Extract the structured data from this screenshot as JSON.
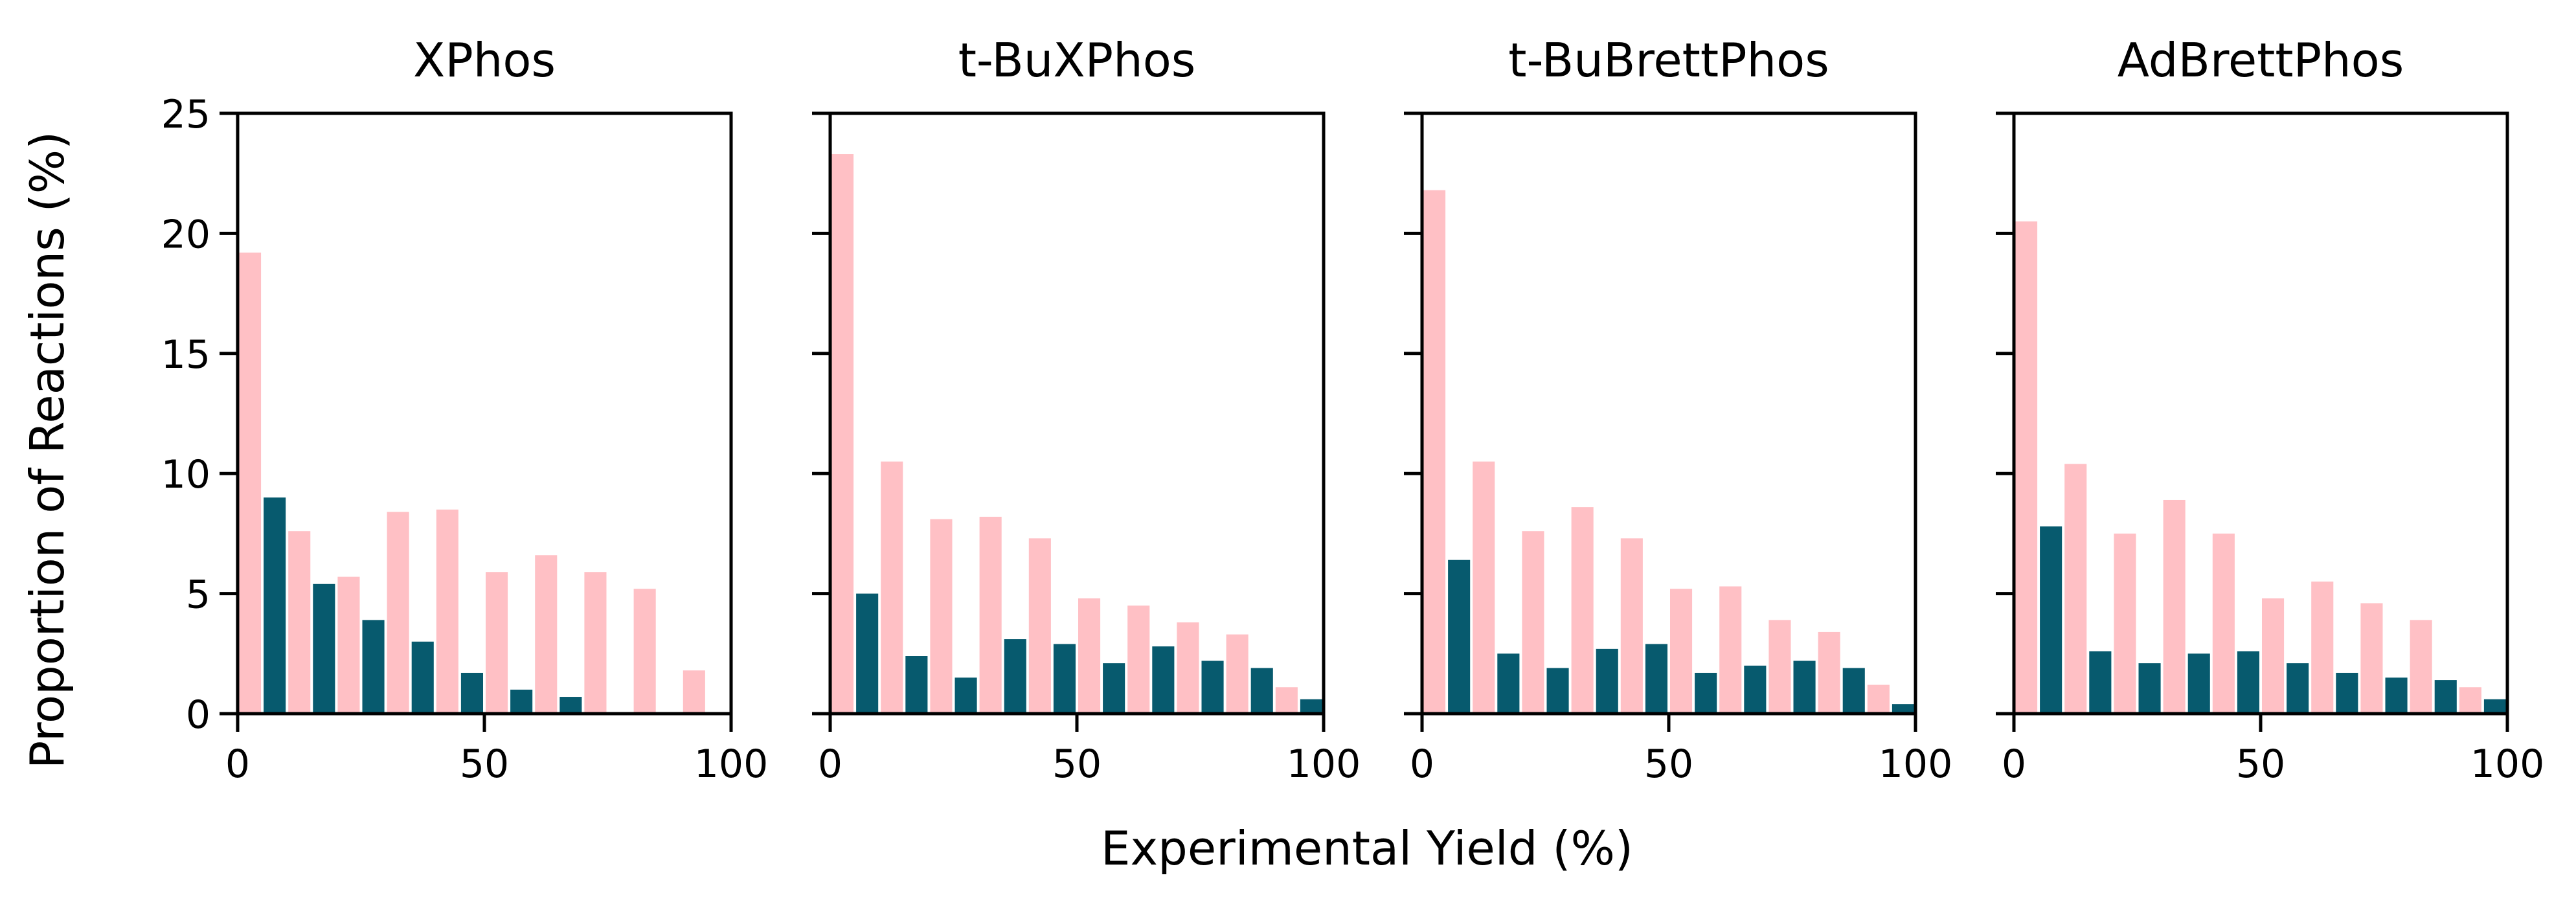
{
  "figure": {
    "ylabel": "Proportion of Reactions (%)",
    "xlabel": "Experimental Yield (%)"
  },
  "colors": {
    "series_a": "#ffc0c5",
    "series_b": "#075a6e",
    "axis": "#000000",
    "background": "#ffffff"
  },
  "chart_data": [
    {
      "type": "bar",
      "title": "XPhos",
      "x_ticks": [
        "0",
        "50",
        "100"
      ],
      "y_ticks": [
        "0",
        "5",
        "10",
        "15",
        "20",
        "25"
      ],
      "xlim": [
        0,
        100
      ],
      "ylim": [
        0,
        25
      ],
      "bin_centers": [
        5,
        15,
        25,
        35,
        45,
        55,
        65,
        75,
        85,
        95
      ],
      "series": [
        {
          "values": [
            19.2,
            7.6,
            5.7,
            8.4,
            8.5,
            5.9,
            6.6,
            5.9,
            5.2,
            1.8
          ]
        },
        {
          "values": [
            9.0,
            5.4,
            3.9,
            3.0,
            1.7,
            1.0,
            0.7,
            0,
            0,
            0
          ]
        }
      ]
    },
    {
      "type": "bar",
      "title": "t-BuXPhos",
      "x_ticks": [
        "0",
        "50",
        "100"
      ],
      "y_ticks": [],
      "xlim": [
        0,
        100
      ],
      "ylim": [
        0,
        25
      ],
      "bin_centers": [
        5,
        15,
        25,
        35,
        45,
        55,
        65,
        75,
        85,
        95
      ],
      "series": [
        {
          "values": [
            23.3,
            10.5,
            8.1,
            8.2,
            7.3,
            4.8,
            4.5,
            3.8,
            3.3,
            1.1
          ]
        },
        {
          "values": [
            5.0,
            2.4,
            1.5,
            3.1,
            2.9,
            2.1,
            2.8,
            2.2,
            1.9,
            0.6
          ]
        }
      ]
    },
    {
      "type": "bar",
      "title": "t-BuBrettPhos",
      "x_ticks": [
        "0",
        "50",
        "100"
      ],
      "y_ticks": [],
      "xlim": [
        0,
        100
      ],
      "ylim": [
        0,
        25
      ],
      "bin_centers": [
        5,
        15,
        25,
        35,
        45,
        55,
        65,
        75,
        85,
        95
      ],
      "series": [
        {
          "values": [
            21.8,
            10.5,
            7.6,
            8.6,
            7.3,
            5.2,
            5.3,
            3.9,
            3.4,
            1.2
          ]
        },
        {
          "values": [
            6.4,
            2.5,
            1.9,
            2.7,
            2.9,
            1.7,
            2.0,
            2.2,
            1.9,
            0.4
          ]
        }
      ]
    },
    {
      "type": "bar",
      "title": "AdBrettPhos",
      "x_ticks": [
        "0",
        "50",
        "100"
      ],
      "y_ticks": [],
      "xlim": [
        0,
        100
      ],
      "ylim": [
        0,
        25
      ],
      "bin_centers": [
        5,
        15,
        25,
        35,
        45,
        55,
        65,
        75,
        85,
        95
      ],
      "series": [
        {
          "values": [
            20.5,
            10.4,
            7.5,
            8.9,
            7.5,
            4.8,
            5.5,
            4.6,
            3.9,
            1.1
          ]
        },
        {
          "values": [
            7.8,
            2.6,
            2.1,
            2.5,
            2.6,
            2.1,
            1.7,
            1.5,
            1.4,
            0.6
          ]
        }
      ]
    }
  ]
}
